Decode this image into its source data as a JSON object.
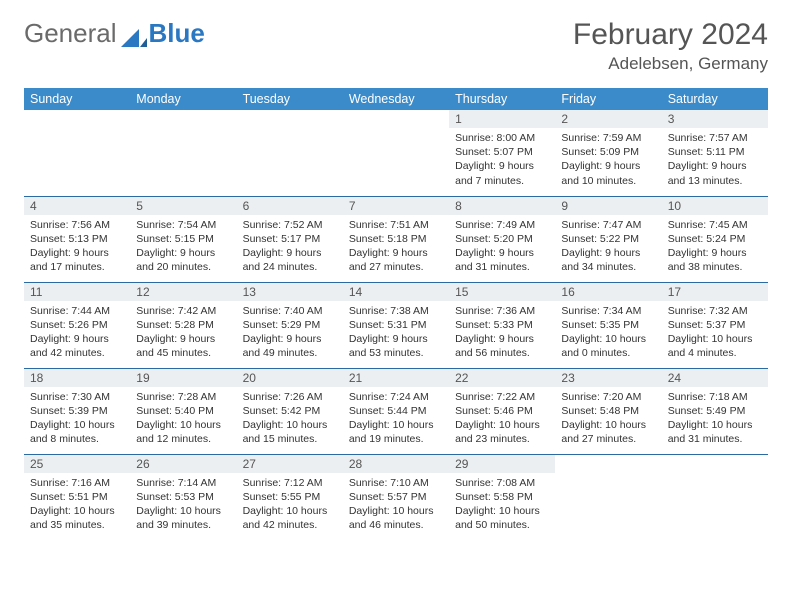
{
  "brand": {
    "part1": "General",
    "part2": "Blue"
  },
  "title": "February 2024",
  "location": "Adelebsen, Germany",
  "colors": {
    "header_bg": "#3b8bca",
    "header_text": "#ffffff",
    "daynum_bg": "#eceff1",
    "row_border": "#2b6aa3",
    "logo_gray": "#6a6a6a",
    "logo_blue": "#2b78c2",
    "text": "#333333",
    "background": "#ffffff"
  },
  "typography": {
    "title_fontsize": 30,
    "location_fontsize": 17,
    "header_fontsize": 12.5,
    "cell_fontsize": 10.5,
    "daynum_fontsize": 12
  },
  "weekdays": [
    "Sunday",
    "Monday",
    "Tuesday",
    "Wednesday",
    "Thursday",
    "Friday",
    "Saturday"
  ],
  "weeks": [
    [
      null,
      null,
      null,
      null,
      {
        "n": "1",
        "sr": "8:00 AM",
        "ss": "5:07 PM",
        "dl": "9 hours and 7 minutes."
      },
      {
        "n": "2",
        "sr": "7:59 AM",
        "ss": "5:09 PM",
        "dl": "9 hours and 10 minutes."
      },
      {
        "n": "3",
        "sr": "7:57 AM",
        "ss": "5:11 PM",
        "dl": "9 hours and 13 minutes."
      }
    ],
    [
      {
        "n": "4",
        "sr": "7:56 AM",
        "ss": "5:13 PM",
        "dl": "9 hours and 17 minutes."
      },
      {
        "n": "5",
        "sr": "7:54 AM",
        "ss": "5:15 PM",
        "dl": "9 hours and 20 minutes."
      },
      {
        "n": "6",
        "sr": "7:52 AM",
        "ss": "5:17 PM",
        "dl": "9 hours and 24 minutes."
      },
      {
        "n": "7",
        "sr": "7:51 AM",
        "ss": "5:18 PM",
        "dl": "9 hours and 27 minutes."
      },
      {
        "n": "8",
        "sr": "7:49 AM",
        "ss": "5:20 PM",
        "dl": "9 hours and 31 minutes."
      },
      {
        "n": "9",
        "sr": "7:47 AM",
        "ss": "5:22 PM",
        "dl": "9 hours and 34 minutes."
      },
      {
        "n": "10",
        "sr": "7:45 AM",
        "ss": "5:24 PM",
        "dl": "9 hours and 38 minutes."
      }
    ],
    [
      {
        "n": "11",
        "sr": "7:44 AM",
        "ss": "5:26 PM",
        "dl": "9 hours and 42 minutes."
      },
      {
        "n": "12",
        "sr": "7:42 AM",
        "ss": "5:28 PM",
        "dl": "9 hours and 45 minutes."
      },
      {
        "n": "13",
        "sr": "7:40 AM",
        "ss": "5:29 PM",
        "dl": "9 hours and 49 minutes."
      },
      {
        "n": "14",
        "sr": "7:38 AM",
        "ss": "5:31 PM",
        "dl": "9 hours and 53 minutes."
      },
      {
        "n": "15",
        "sr": "7:36 AM",
        "ss": "5:33 PM",
        "dl": "9 hours and 56 minutes."
      },
      {
        "n": "16",
        "sr": "7:34 AM",
        "ss": "5:35 PM",
        "dl": "10 hours and 0 minutes."
      },
      {
        "n": "17",
        "sr": "7:32 AM",
        "ss": "5:37 PM",
        "dl": "10 hours and 4 minutes."
      }
    ],
    [
      {
        "n": "18",
        "sr": "7:30 AM",
        "ss": "5:39 PM",
        "dl": "10 hours and 8 minutes."
      },
      {
        "n": "19",
        "sr": "7:28 AM",
        "ss": "5:40 PM",
        "dl": "10 hours and 12 minutes."
      },
      {
        "n": "20",
        "sr": "7:26 AM",
        "ss": "5:42 PM",
        "dl": "10 hours and 15 minutes."
      },
      {
        "n": "21",
        "sr": "7:24 AM",
        "ss": "5:44 PM",
        "dl": "10 hours and 19 minutes."
      },
      {
        "n": "22",
        "sr": "7:22 AM",
        "ss": "5:46 PM",
        "dl": "10 hours and 23 minutes."
      },
      {
        "n": "23",
        "sr": "7:20 AM",
        "ss": "5:48 PM",
        "dl": "10 hours and 27 minutes."
      },
      {
        "n": "24",
        "sr": "7:18 AM",
        "ss": "5:49 PM",
        "dl": "10 hours and 31 minutes."
      }
    ],
    [
      {
        "n": "25",
        "sr": "7:16 AM",
        "ss": "5:51 PM",
        "dl": "10 hours and 35 minutes."
      },
      {
        "n": "26",
        "sr": "7:14 AM",
        "ss": "5:53 PM",
        "dl": "10 hours and 39 minutes."
      },
      {
        "n": "27",
        "sr": "7:12 AM",
        "ss": "5:55 PM",
        "dl": "10 hours and 42 minutes."
      },
      {
        "n": "28",
        "sr": "7:10 AM",
        "ss": "5:57 PM",
        "dl": "10 hours and 46 minutes."
      },
      {
        "n": "29",
        "sr": "7:08 AM",
        "ss": "5:58 PM",
        "dl": "10 hours and 50 minutes."
      },
      null,
      null
    ]
  ],
  "labels": {
    "sunrise": "Sunrise:",
    "sunset": "Sunset:",
    "daylight": "Daylight:"
  }
}
